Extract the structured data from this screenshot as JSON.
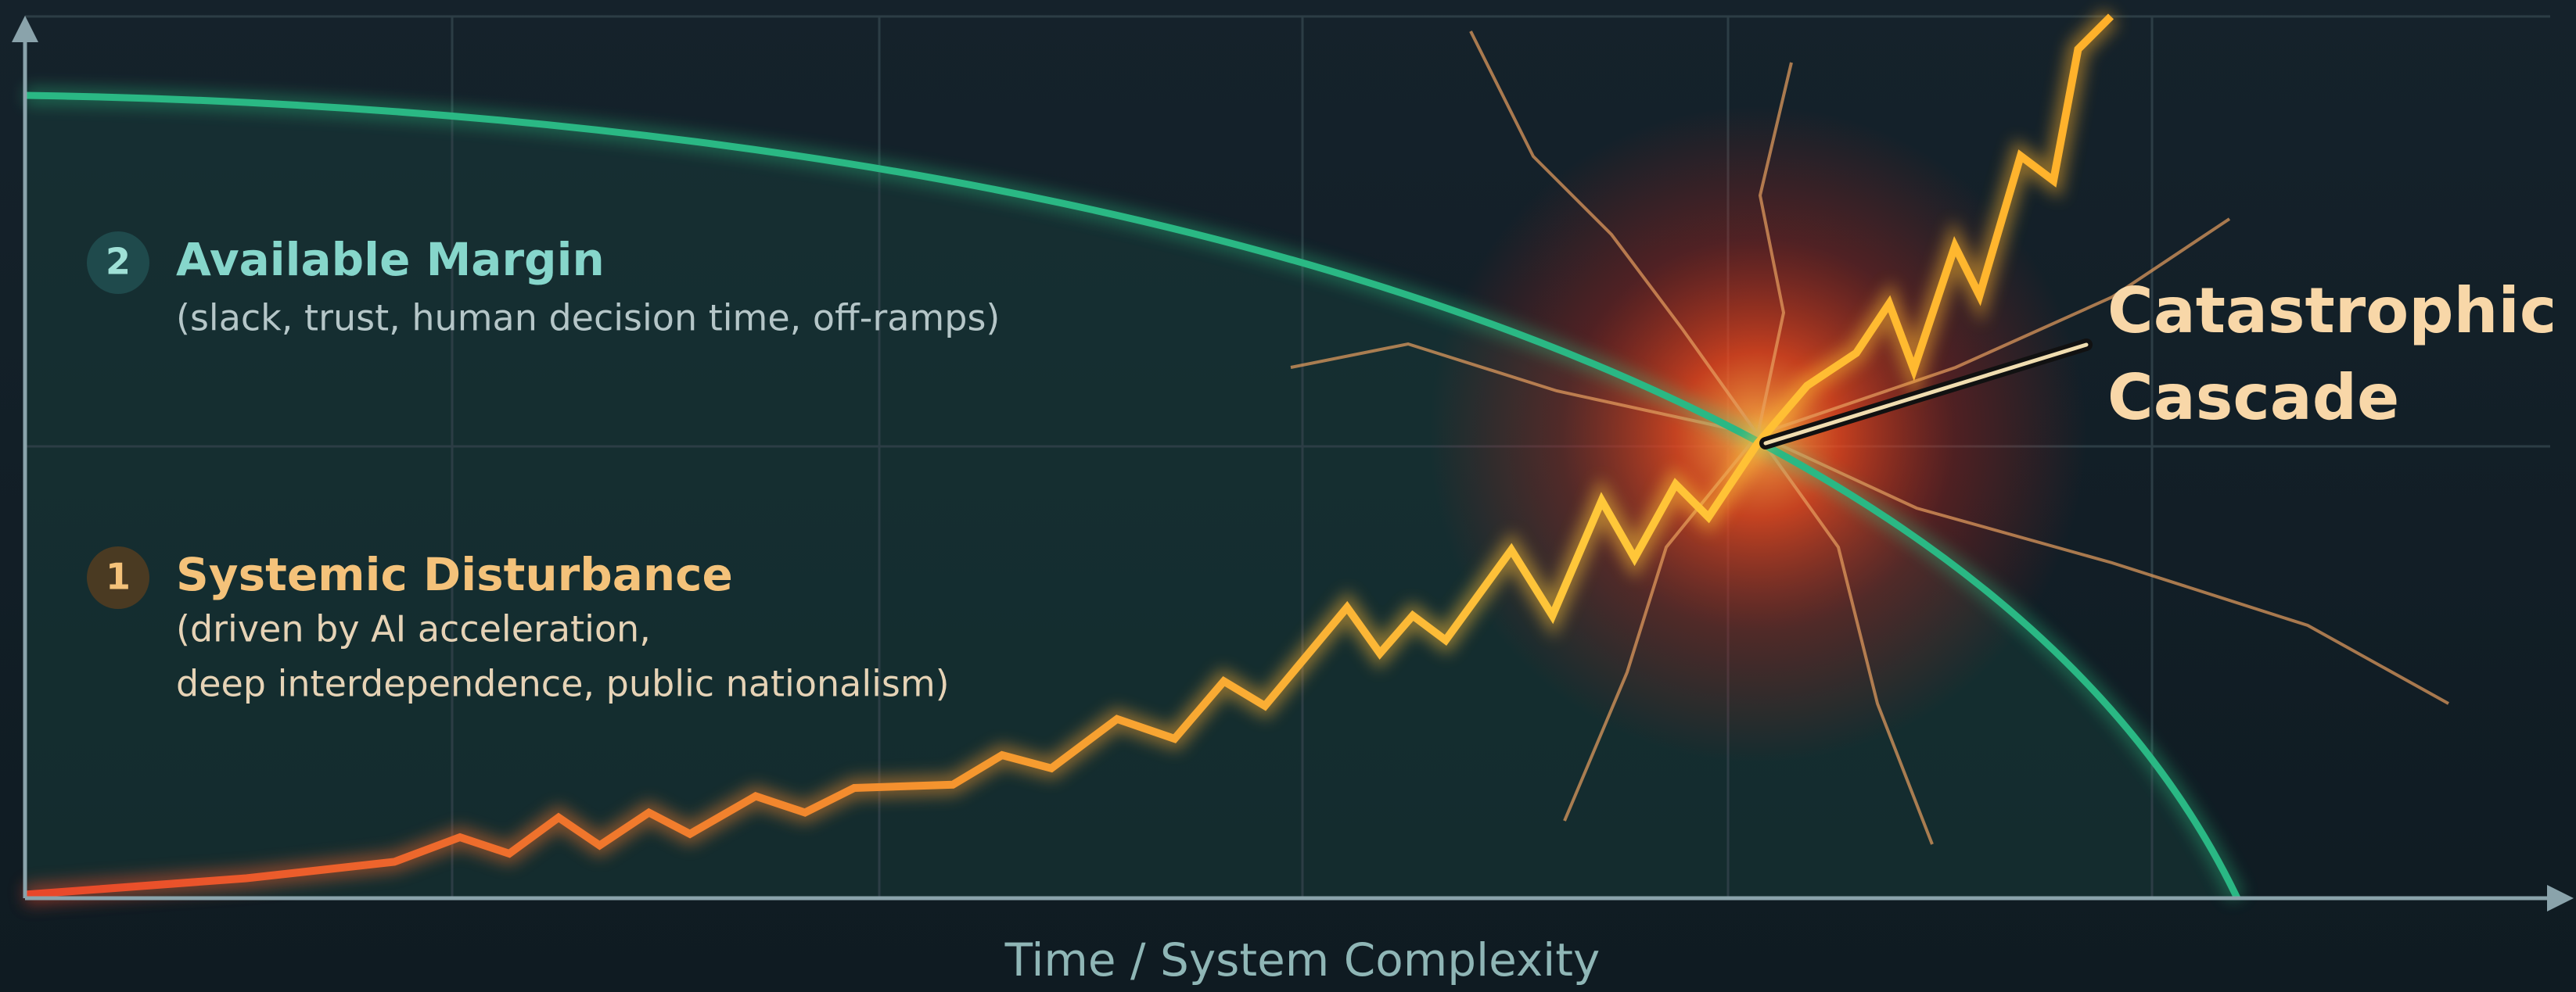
{
  "labels": [
    {
      "number": "2",
      "title": "Available Margin",
      "lines": [
        "(slack, trust, human decision time, off-ramps)"
      ]
    },
    {
      "number": "1",
      "title": "Systemic Disturbance",
      "lines": [
        "(driven by AI acceleration,",
        "deep interdependence, public nationalism)"
      ]
    }
  ],
  "callout": {
    "lines": [
      "Catastrophic",
      "Cascade"
    ]
  },
  "x_axis_title": "Time / System Complexity"
}
